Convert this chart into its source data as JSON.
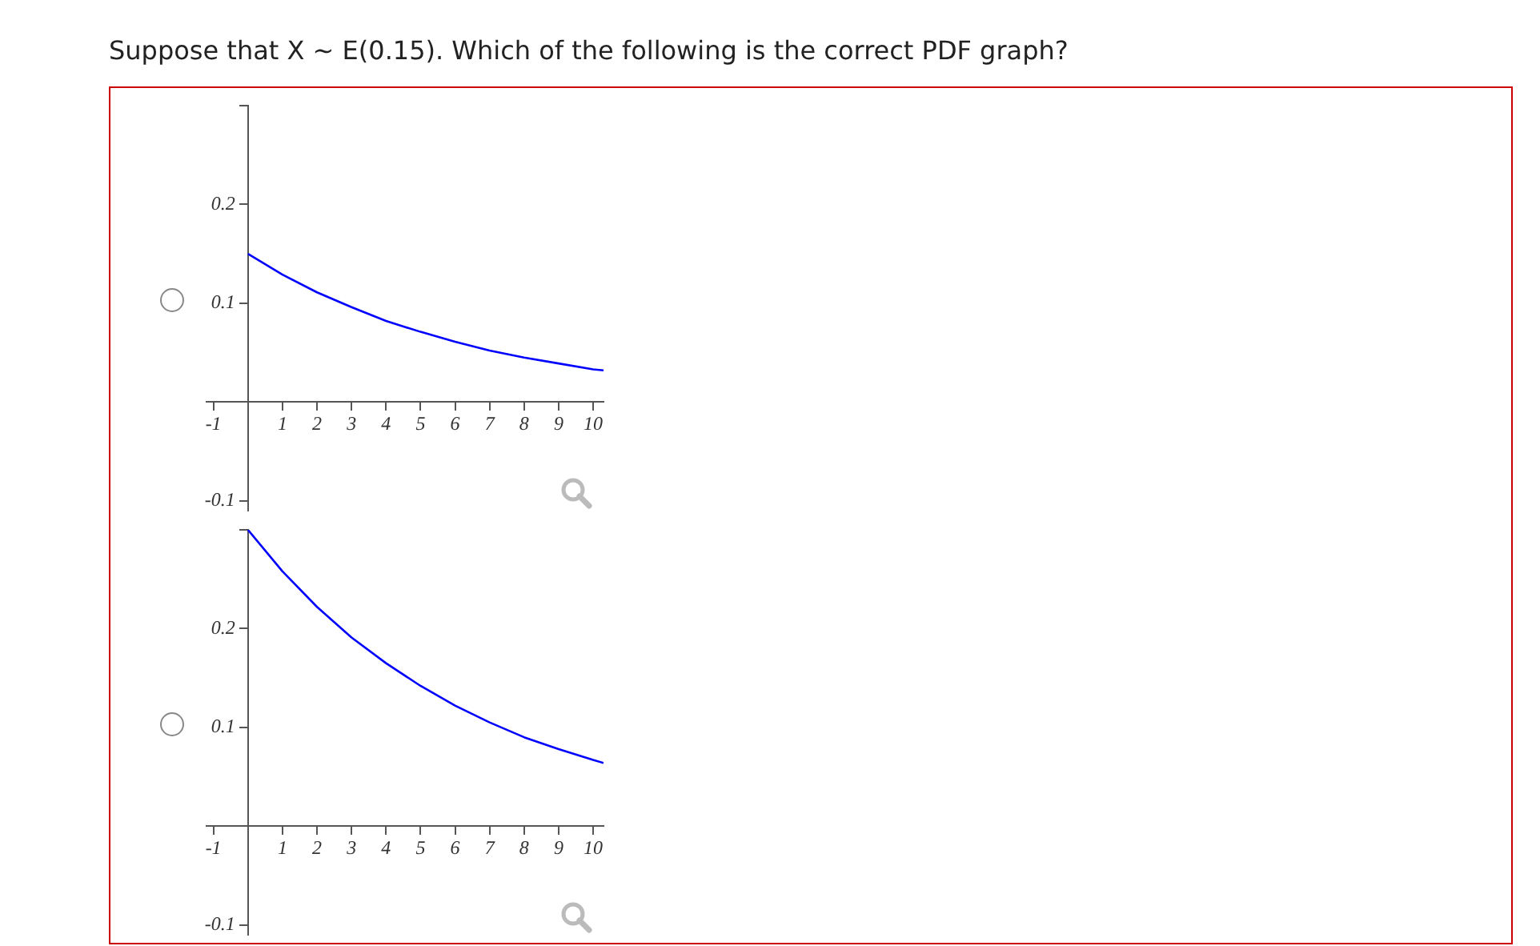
{
  "chart_data": [
    {
      "type": "line",
      "title": "Suppose that X ∼ E(0.15). Which of the following is the correct PDF graph?",
      "x": [
        0,
        1,
        2,
        3,
        4,
        5,
        6,
        7,
        8,
        9,
        10,
        10.3
      ],
      "series": [
        {
          "color": "#0000ff",
          "values": [
            0.15,
            0.129,
            0.111,
            0.096,
            0.082,
            0.071,
            0.061,
            0.052,
            0.045,
            0.039,
            0.033,
            0.032
          ]
        }
      ],
      "xlim": [
        -1.2,
        10.3
      ],
      "ylim": [
        -0.11,
        0.3
      ],
      "xticks": [
        -1,
        1,
        2,
        3,
        4,
        5,
        6,
        7,
        8,
        9,
        10
      ],
      "yticks": [
        -0.1,
        0.1,
        0.2,
        {
          "value": 0.3,
          "label": null
        }
      ],
      "grid": false,
      "legend": false,
      "marker": "none",
      "line_style": "solid"
    },
    {
      "type": "line",
      "x": [
        0,
        1,
        2,
        3,
        4,
        5,
        6,
        7,
        8,
        9,
        10,
        10.3
      ],
      "series": [
        {
          "color": "#0000ff",
          "values": [
            0.3,
            0.258,
            0.222,
            0.191,
            0.165,
            0.142,
            0.122,
            0.105,
            0.09,
            0.078,
            0.067,
            0.064
          ]
        }
      ],
      "xlim": [
        -1.2,
        10.3
      ],
      "ylim": [
        -0.11,
        0.3
      ],
      "xticks": [
        -1,
        1,
        2,
        3,
        4,
        5,
        6,
        7,
        8,
        9,
        10
      ],
      "yticks": [
        -0.1,
        0.1,
        0.2,
        {
          "value": 0.3,
          "label": null
        }
      ],
      "grid": false,
      "legend": false,
      "marker": "none",
      "line_style": "solid"
    }
  ]
}
